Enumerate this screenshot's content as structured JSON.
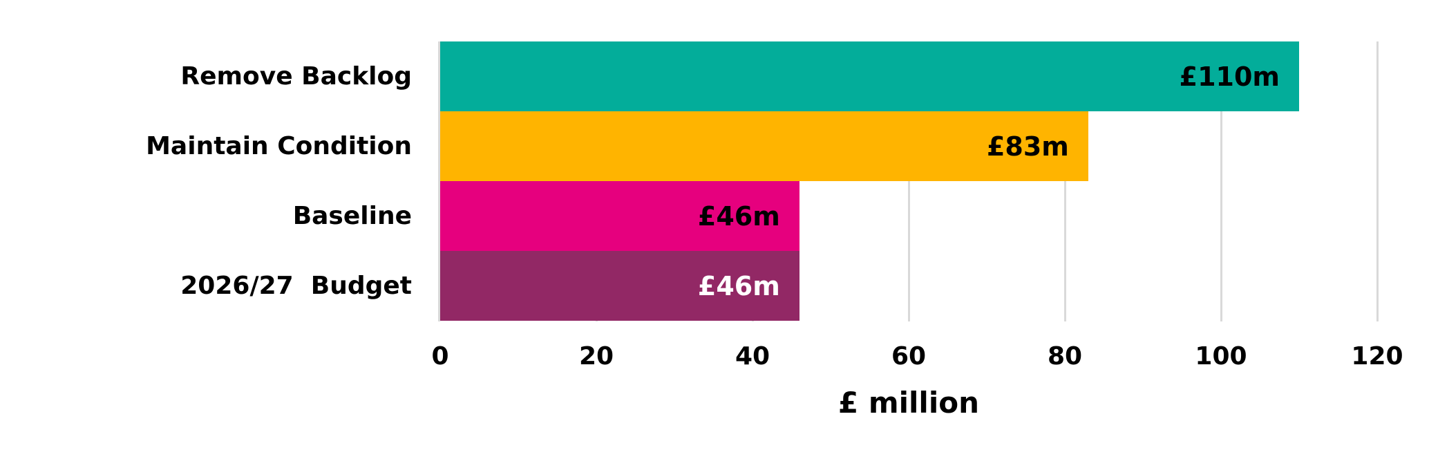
{
  "chart_data": {
    "type": "bar",
    "orientation": "horizontal",
    "title": "",
    "xlabel": "£ million",
    "ylabel": "",
    "xlim": [
      0,
      120
    ],
    "x_ticks": [
      "0",
      "20",
      "40",
      "60",
      "80",
      "100",
      "120"
    ],
    "grid": "vertical",
    "legend": "none",
    "categories": [
      "Remove Backlog",
      "Maintain Condition",
      "Baseline",
      "2026/27  Budget"
    ],
    "values": [
      110,
      83,
      46,
      46
    ],
    "data_labels": [
      "£110m",
      "£83m",
      "£46m",
      "£46m"
    ],
    "colors": [
      "#03ad9a",
      "#ffb400",
      "#e6007e",
      "#922865"
    ],
    "label_colors": [
      "#000000",
      "#000000",
      "#000000",
      "#ffffff"
    ]
  },
  "bars": [
    {
      "category": "Remove Backlog",
      "value": 110,
      "label": "£110m",
      "color": "#03ad9a",
      "label_color": "#000000"
    },
    {
      "category": "Maintain Condition",
      "value": 83,
      "label": "£83m",
      "color": "#ffb400",
      "label_color": "#000000"
    },
    {
      "category": "Baseline",
      "value": 46,
      "label": "£46m",
      "color": "#e6007e",
      "label_color": "#000000"
    },
    {
      "category": "2026/27  Budget",
      "value": 46,
      "label": "£46m",
      "color": "#922865",
      "label_color": "#ffffff"
    }
  ],
  "axis": {
    "ticks": [
      "0",
      "20",
      "40",
      "60",
      "80",
      "100",
      "120"
    ],
    "title": "£ million",
    "max": 120
  }
}
